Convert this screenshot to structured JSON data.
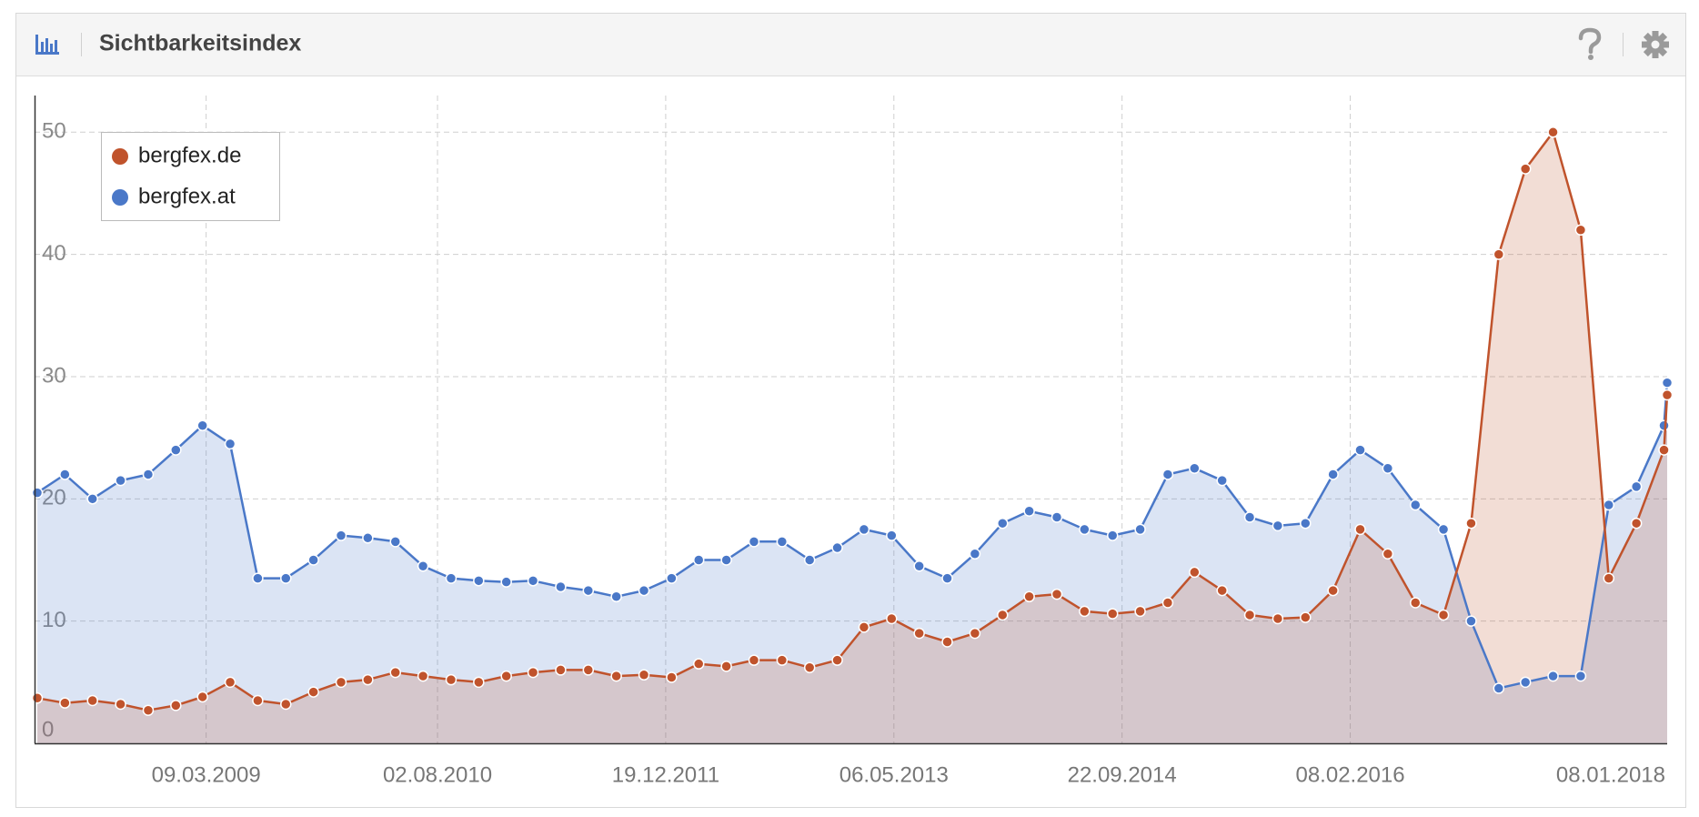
{
  "chart_data": {
    "type": "line",
    "title": "Sichtbarkeitsindex",
    "x": [
      "01.03.2008",
      "01.05.2008",
      "01.07.2008",
      "01.09.2008",
      "01.11.2008",
      "01.01.2009",
      "01.03.2009",
      "01.05.2009",
      "01.07.2009",
      "01.09.2009",
      "01.11.2009",
      "01.01.2010",
      "01.03.2010",
      "01.05.2010",
      "01.07.2010",
      "01.09.2010",
      "01.11.2010",
      "01.01.2011",
      "01.03.2011",
      "01.05.2011",
      "01.07.2011",
      "01.09.2011",
      "01.11.2011",
      "01.01.2012",
      "01.03.2012",
      "01.05.2012",
      "01.07.2012",
      "01.09.2012",
      "01.11.2012",
      "01.01.2013",
      "01.03.2013",
      "01.05.2013",
      "01.07.2013",
      "01.09.2013",
      "01.11.2013",
      "01.01.2014",
      "01.03.2014",
      "01.05.2014",
      "01.07.2014",
      "01.09.2014",
      "01.11.2014",
      "01.01.2015",
      "01.03.2015",
      "01.05.2015",
      "01.07.2015",
      "01.09.2015",
      "01.11.2015",
      "01.01.2016",
      "01.03.2016",
      "01.05.2016",
      "01.07.2016",
      "01.09.2016",
      "01.11.2016",
      "01.01.2017",
      "01.03.2017",
      "01.05.2017",
      "01.07.2017",
      "01.09.2017",
      "01.11.2017",
      "01.01.2018",
      "08.01.2018"
    ],
    "series": [
      {
        "name": "bergfex.at",
        "color": "#4a78c8",
        "values": [
          20.5,
          22,
          20,
          21.5,
          22,
          24,
          26,
          24.5,
          13.5,
          13.5,
          15,
          17,
          16.8,
          16.5,
          14.5,
          13.5,
          13.3,
          13.2,
          13.3,
          12.8,
          12.5,
          12,
          12.5,
          13.5,
          15,
          15,
          16.5,
          16.5,
          15,
          16,
          17.5,
          17,
          14.5,
          13.5,
          15.5,
          18,
          19,
          18.5,
          17.5,
          17,
          17.5,
          22,
          22.5,
          21.5,
          18.5,
          17.8,
          18,
          22,
          24,
          22.5,
          19.5,
          17.5,
          10,
          4.5,
          5,
          5.5,
          5.5,
          19.5,
          21,
          26,
          29.5
        ]
      },
      {
        "name": "bergfex.de",
        "color": "#c0532c",
        "values": [
          3.7,
          3.3,
          3.5,
          3.2,
          2.7,
          3.1,
          3.8,
          5,
          3.5,
          3.2,
          4.2,
          5,
          5.2,
          5.8,
          5.5,
          5.2,
          5,
          5.5,
          5.8,
          6,
          6,
          5.5,
          5.6,
          5.4,
          6.5,
          6.3,
          6.8,
          6.8,
          6.2,
          6.8,
          9.5,
          10.2,
          9,
          8.3,
          9,
          10.5,
          12,
          12.2,
          10.8,
          10.6,
          10.8,
          11.5,
          14,
          12.5,
          10.5,
          10.2,
          10.3,
          12.5,
          17.5,
          15.5,
          11.5,
          10.5,
          18,
          40,
          47,
          50,
          42,
          13.5,
          18,
          24,
          28.5
        ]
      }
    ],
    "xlim": [
      "24.02.2008",
      "08.01.2018"
    ],
    "xticks": [
      "09.03.2009",
      "02.08.2010",
      "19.12.2011",
      "06.05.2013",
      "22.09.2014",
      "08.02.2016",
      "08.01.2018"
    ],
    "ylim": [
      0,
      53
    ],
    "yticks": [
      0,
      10,
      20,
      30,
      40,
      50
    ],
    "grid": true,
    "legend": "top-left"
  }
}
